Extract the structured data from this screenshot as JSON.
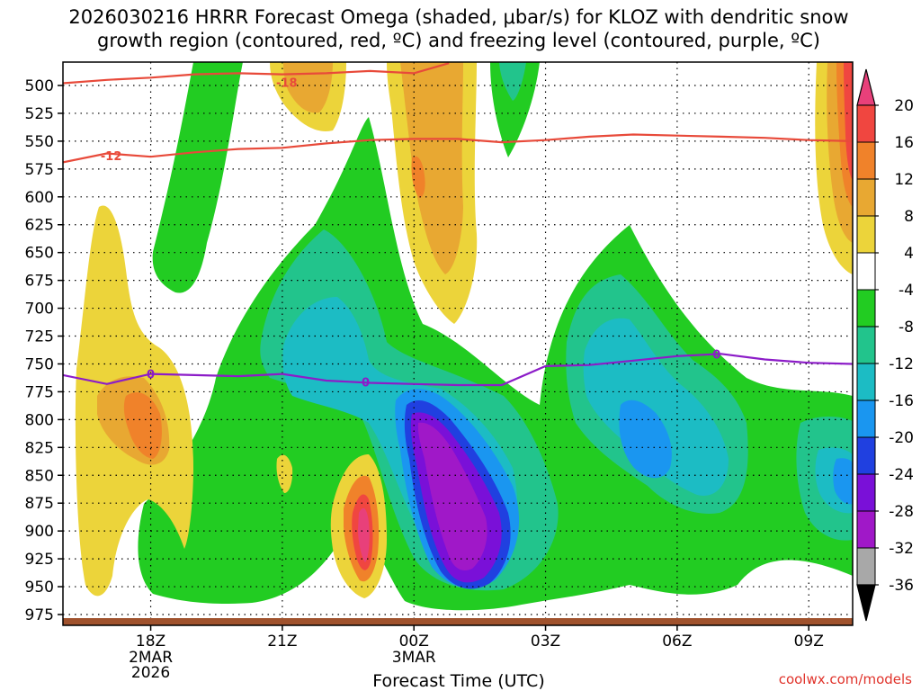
{
  "title_line1": "2026030216 HRRR Forecast Omega (shaded, μbar/s) for KLOZ with dendritic snow",
  "title_line2": "growth region (contoured, red, ºC) and freezing level (contoured, purple, ºC)",
  "xlabel": "Forecast Time (UTC)",
  "credit": "coolwx.com/models",
  "chart_data": {
    "type": "contour",
    "y_axis": {
      "label": "",
      "inverted": true,
      "ticks": [
        500,
        525,
        550,
        575,
        600,
        625,
        650,
        675,
        700,
        725,
        750,
        775,
        800,
        825,
        850,
        875,
        900,
        925,
        950,
        975
      ]
    },
    "x_axis": {
      "ticks": [
        {
          "label": "18Z",
          "sub": [
            "2MAR",
            "2026"
          ],
          "hour": 18
        },
        {
          "label": "21Z",
          "sub": [],
          "hour": 21
        },
        {
          "label": "00Z",
          "sub": [
            "3MAR"
          ],
          "hour": 24
        },
        {
          "label": "03Z",
          "sub": [],
          "hour": 27
        },
        {
          "label": "06Z",
          "sub": [],
          "hour": 30
        },
        {
          "label": "09Z",
          "sub": [],
          "hour": 33
        }
      ],
      "range_hours": [
        16,
        34
      ]
    },
    "grid": true,
    "colorbar": {
      "levels": [
        20,
        16,
        12,
        8,
        4,
        -4,
        -8,
        -12,
        -16,
        -20,
        -24,
        -28,
        -32,
        -36
      ],
      "colors": [
        "#e8407a",
        "#f04640",
        "#f0822a",
        "#e8a832",
        "#ecd43a",
        "#ffffff",
        "#22cc22",
        "#22c48c",
        "#1cbcc4",
        "#1a96f0",
        "#2040e0",
        "#7a10d8",
        "#a018c8",
        "#a8a8a8",
        "#000000"
      ]
    },
    "contours": [
      {
        "name": "dendritic snow growth region",
        "color": "#e84a3a",
        "labels": [
          {
            "text": "-18",
            "hour": 21.1,
            "pressure": 497
          },
          {
            "text": "-12",
            "hour": 17.1,
            "pressure": 563
          }
        ],
        "lines": [
          {
            "level": -18,
            "points": [
              [
                16,
                498
              ],
              [
                17,
                495
              ],
              [
                18,
                493
              ],
              [
                19,
                490
              ],
              [
                20,
                489
              ],
              [
                21,
                490
              ],
              [
                22,
                489
              ],
              [
                23,
                487
              ],
              [
                24,
                489
              ],
              [
                24.8,
                480
              ]
            ]
          },
          {
            "level": -12,
            "points": [
              [
                16,
                569
              ],
              [
                17,
                561
              ],
              [
                18,
                564
              ],
              [
                19,
                560
              ],
              [
                20,
                557
              ],
              [
                21,
                556
              ],
              [
                22,
                552
              ],
              [
                23,
                549
              ],
              [
                24,
                548
              ],
              [
                25,
                548
              ],
              [
                26,
                551
              ],
              [
                27,
                549
              ],
              [
                28,
                546
              ],
              [
                29,
                544
              ],
              [
                30,
                545
              ],
              [
                31,
                546
              ],
              [
                32,
                547
              ],
              [
                33,
                549
              ],
              [
                34,
                550
              ]
            ]
          }
        ]
      },
      {
        "name": "freezing level",
        "color": "#8c1cc8",
        "labels": [
          {
            "text": "0",
            "hour": 18,
            "pressure": 759
          },
          {
            "text": "0",
            "hour": 22.9,
            "pressure": 766
          },
          {
            "text": "0",
            "hour": 30.9,
            "pressure": 741
          }
        ],
        "lines": [
          {
            "level": 0,
            "points": [
              [
                16,
                760
              ],
              [
                17,
                768
              ],
              [
                18,
                759
              ],
              [
                19,
                760
              ],
              [
                20,
                761
              ],
              [
                21,
                759
              ],
              [
                22,
                765
              ],
              [
                23,
                767
              ],
              [
                24,
                768
              ],
              [
                25,
                769
              ],
              [
                26,
                769
              ],
              [
                27,
                752
              ],
              [
                28,
                751
              ],
              [
                29,
                747
              ],
              [
                30,
                743
              ],
              [
                31,
                741
              ],
              [
                32,
                746
              ],
              [
                33,
                749
              ],
              [
                34,
                750
              ]
            ]
          }
        ]
      }
    ],
    "shaded_field": "omega",
    "shaded_units": "μbar/s"
  }
}
